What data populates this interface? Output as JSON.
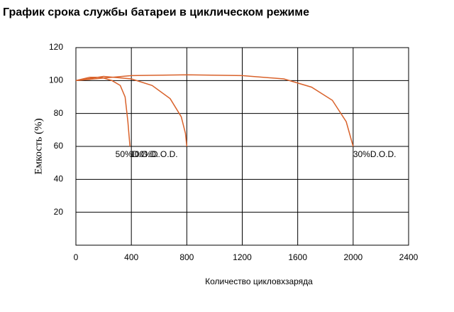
{
  "chart_data": {
    "type": "line",
    "title": "График срока службы батареи в циклическом режиме",
    "x_label": "Количество цикловхзаряда",
    "y_label": "Емкость (%)",
    "xlim": [
      0,
      2400
    ],
    "xticks": [
      0,
      400,
      800,
      1200,
      1600,
      2000,
      2400
    ],
    "ylim": [
      0,
      120
    ],
    "yticks": [
      20,
      40,
      60,
      80,
      100,
      120
    ],
    "grid": true,
    "series": [
      {
        "name": "100%D.O.D.",
        "color": "#d9622b",
        "x": [
          0,
          100,
          180,
          260,
          320,
          355,
          375,
          390
        ],
        "values": [
          100,
          102,
          102,
          100,
          97,
          90,
          75,
          60
        ]
      },
      {
        "name": "50%D.O.D.",
        "color": "#d9622b",
        "x": [
          0,
          200,
          400,
          550,
          680,
          760,
          790,
          800
        ],
        "values": [
          100,
          102.5,
          101,
          97,
          89,
          78,
          68,
          60
        ]
      },
      {
        "name": "30%D.O.D.",
        "color": "#d9622b",
        "x": [
          0,
          400,
          800,
          1200,
          1500,
          1700,
          1850,
          1950,
          2000
        ],
        "values": [
          100,
          103,
          103.5,
          103,
          101,
          96,
          88,
          75,
          60
        ]
      }
    ]
  }
}
